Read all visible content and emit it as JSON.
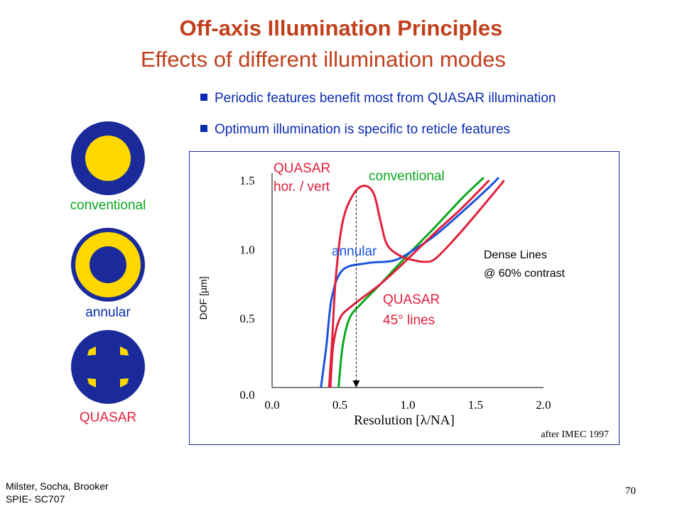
{
  "title": "Off-axis Illumination Principles",
  "subtitle": "Effects of different illumination modes",
  "bullets": [
    "Periodic features benefit most from QUASAR illumination",
    "Optimum illumination is specific to reticle features"
  ],
  "sources": [
    {
      "label": "conventional",
      "color": "#0aa81e"
    },
    {
      "label": "annular",
      "color": "#0a2ab0"
    },
    {
      "label": "QUASAR",
      "color": "#e0203c"
    }
  ],
  "footer": {
    "authors": "Milster, Socha, Brooker",
    "course": "SPIE- SC707",
    "page": "70"
  },
  "colors": {
    "navy": "#1a2a9a",
    "yellow": "#ffd800"
  },
  "chart_data": {
    "type": "line",
    "xlabel": "Resolution [λ/NA]",
    "ylabel": "DOF [µm]",
    "xlim": [
      0.0,
      2.0
    ],
    "ylim": [
      0.0,
      1.5
    ],
    "x_ticks": [
      "0.0",
      "0.5",
      "1.0",
      "1.5",
      "2.0"
    ],
    "y_ticks": [
      "0.0",
      "0.5",
      "1.0",
      "1.5"
    ],
    "annotation": {
      "line1": "Dense Lines",
      "line2": "@ 60% contrast"
    },
    "source_note": "after IMEC 1997",
    "series": [
      {
        "name": "conventional",
        "label": "conventional",
        "color": "#0aa81e",
        "points": [
          [
            0.49,
            0.0
          ],
          [
            0.52,
            0.3
          ],
          [
            0.57,
            0.5
          ],
          [
            0.65,
            0.6
          ],
          [
            0.8,
            0.75
          ],
          [
            1.0,
            0.96
          ],
          [
            1.2,
            1.16
          ],
          [
            1.4,
            1.37
          ],
          [
            1.56,
            1.52
          ]
        ]
      },
      {
        "name": "annular",
        "label": "annular",
        "color": "#1a55e0",
        "points": [
          [
            0.36,
            0.0
          ],
          [
            0.4,
            0.3
          ],
          [
            0.44,
            0.65
          ],
          [
            0.52,
            0.85
          ],
          [
            0.7,
            0.9
          ],
          [
            0.9,
            0.92
          ],
          [
            1.05,
            1.0
          ],
          [
            1.2,
            1.1
          ],
          [
            1.4,
            1.27
          ],
          [
            1.6,
            1.45
          ],
          [
            1.67,
            1.52
          ]
        ]
      },
      {
        "name": "QUASAR hor. / vert",
        "label1": "QUASAR",
        "label2": "hor.  / vert",
        "color": "#e0203c",
        "points": [
          [
            0.42,
            0.0
          ],
          [
            0.44,
            0.3
          ],
          [
            0.47,
            0.8
          ],
          [
            0.52,
            1.2
          ],
          [
            0.6,
            1.4
          ],
          [
            0.68,
            1.46
          ],
          [
            0.75,
            1.4
          ],
          [
            0.8,
            1.2
          ],
          [
            0.85,
            1.03
          ],
          [
            0.95,
            0.95
          ],
          [
            1.05,
            0.92
          ],
          [
            1.12,
            0.91
          ],
          [
            1.2,
            0.93
          ],
          [
            1.35,
            1.08
          ],
          [
            1.5,
            1.25
          ],
          [
            1.67,
            1.45
          ],
          [
            1.71,
            1.5
          ]
        ]
      },
      {
        "name": "QUASAR 45° lines",
        "label1": "QUASAR",
        "label2": "45°  lines",
        "color": "#e0203c",
        "points": [
          [
            0.43,
            0.0
          ],
          [
            0.45,
            0.3
          ],
          [
            0.5,
            0.5
          ],
          [
            0.6,
            0.6
          ],
          [
            0.8,
            0.75
          ],
          [
            1.0,
            0.93
          ],
          [
            1.2,
            1.12
          ],
          [
            1.4,
            1.3
          ],
          [
            1.6,
            1.5
          ]
        ]
      }
    ],
    "arrow": {
      "x": 0.62,
      "y_from": 1.42,
      "y_to": 0.0
    }
  }
}
